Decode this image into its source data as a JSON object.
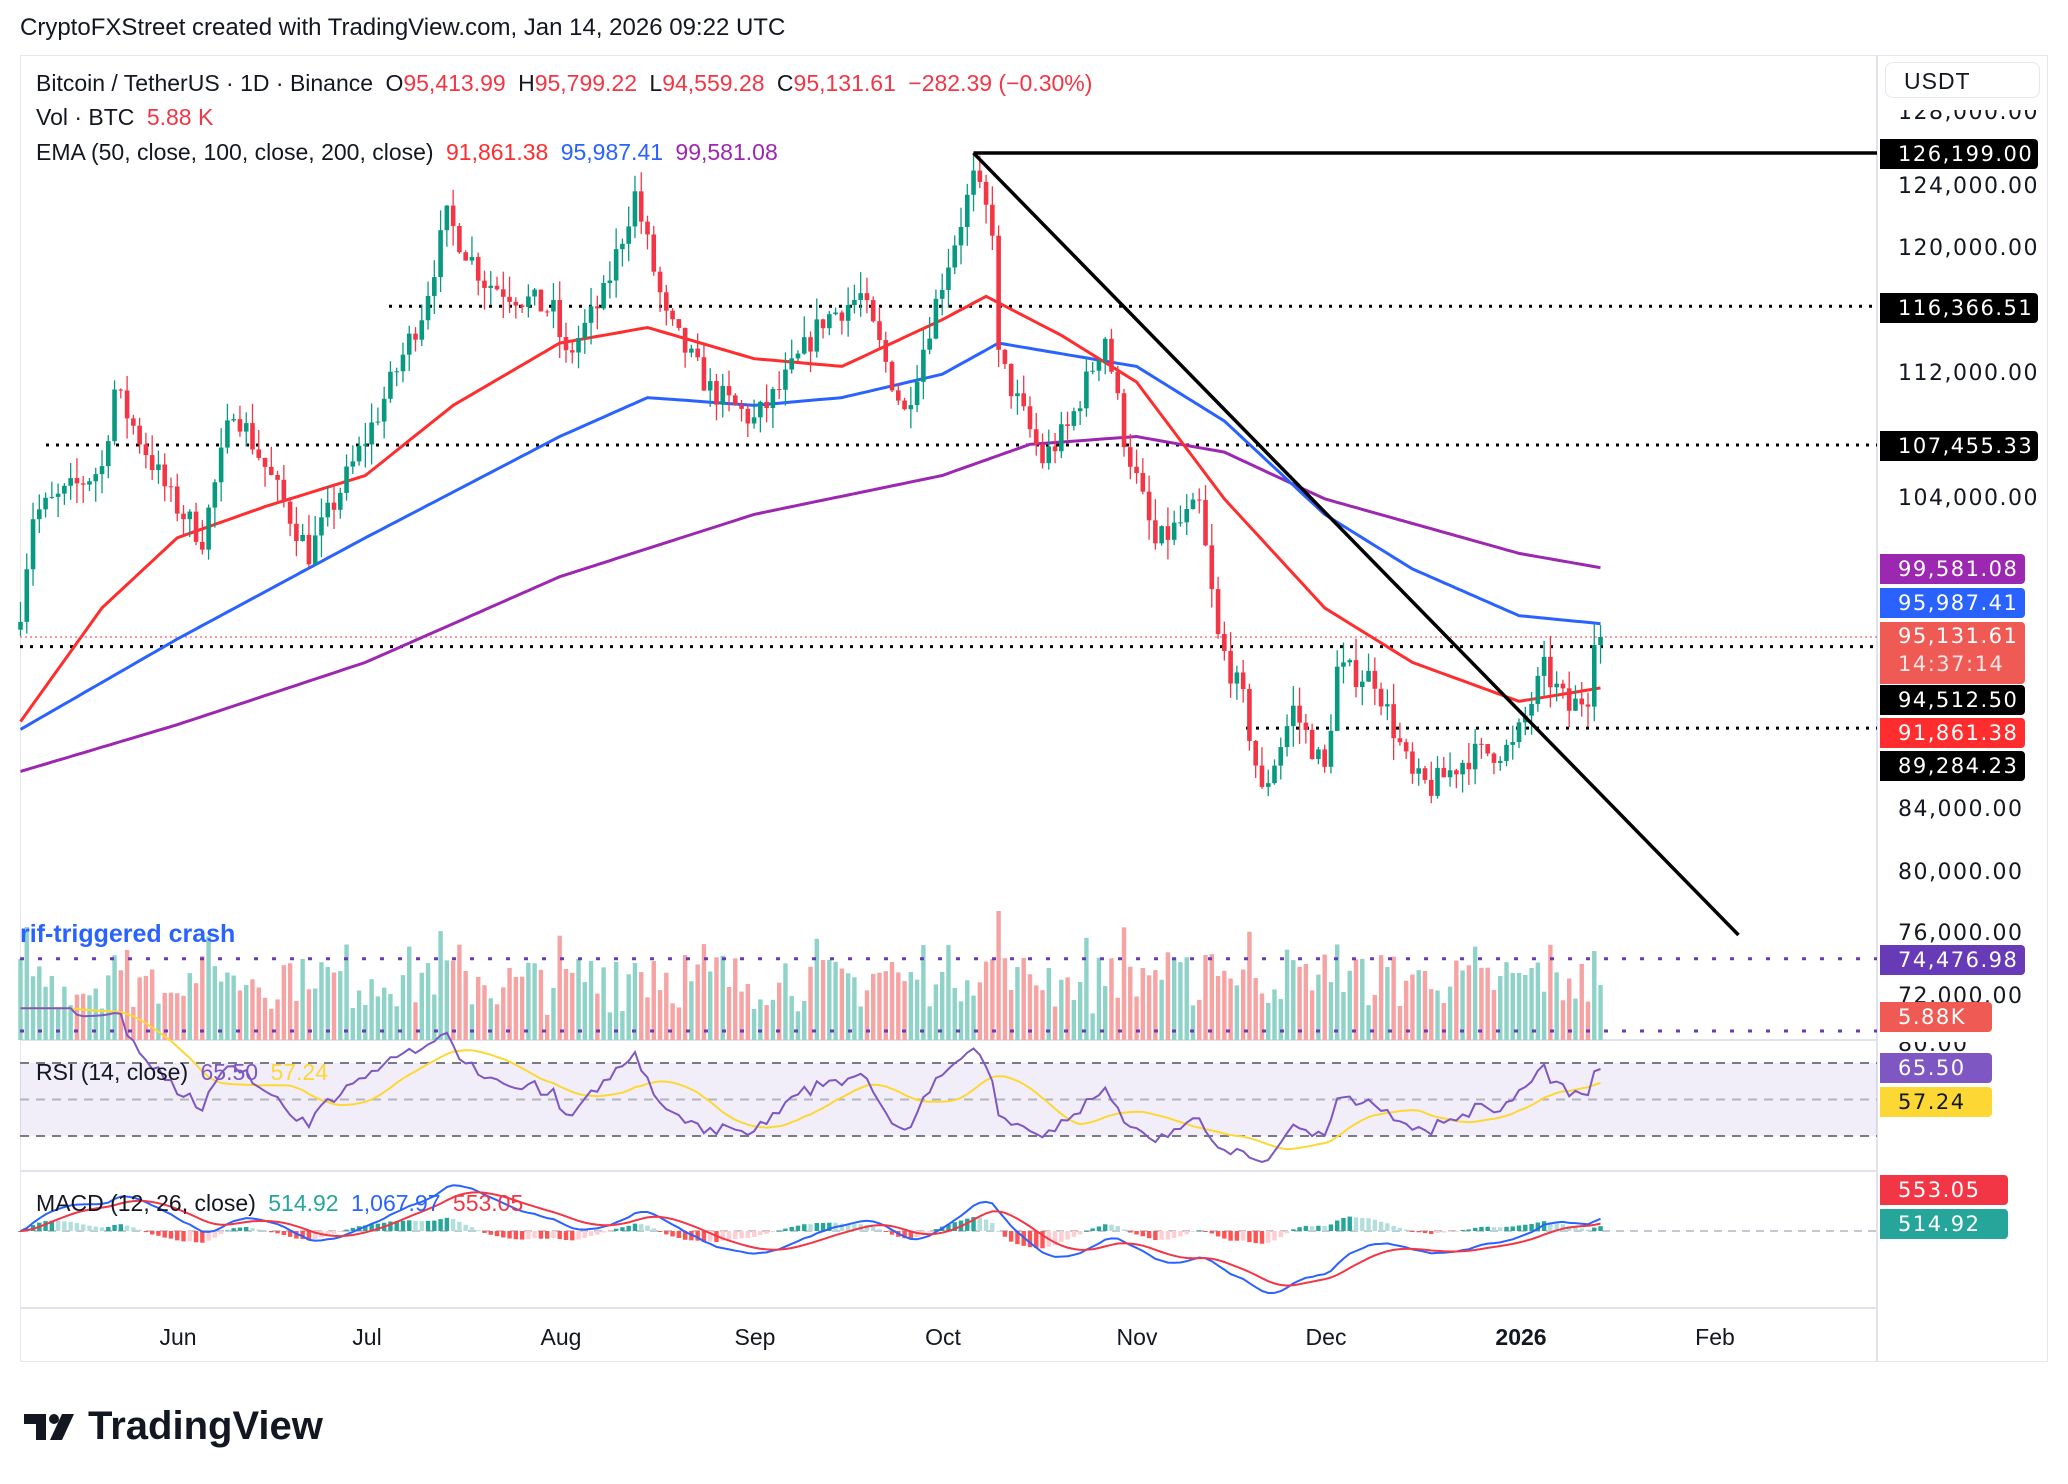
{
  "header": {
    "caption": "CryptoFXStreet created with TradingView.com, Jan 14, 2026 09:22 UTC"
  },
  "legend": {
    "symbol": "Bitcoin / TetherUS · 1D · Binance",
    "o_label": "O",
    "open": "95,413.99",
    "h_label": "H",
    "high": "95,799.22",
    "l_label": "L",
    "low": "94,559.28",
    "c_label": "C",
    "close": "95,131.61",
    "change": "−282.39 (−0.30%)",
    "vol_label": "Vol · BTC",
    "vol_value": "5.88 K",
    "ema_label": "EMA (50, close, 100, close, 200, close)",
    "ema50": "91,861.38",
    "ema100": "95,987.41",
    "ema200": "99,581.08",
    "rsi_label": "RSI (14, close)",
    "rsi_value": "65.50",
    "rsi_ma": "57.24",
    "macd_label": "MACD (12, 26, close)",
    "macd_hist": "514.92",
    "macd_line": "1,067.97",
    "macd_signal": "553.05"
  },
  "annotation": "rif-triggered crash",
  "price_axis": {
    "currency": "USDT",
    "labels": [
      "128,000.00",
      "124,000.00",
      "120,000.00",
      "112,000.00",
      "104,000.00",
      "84,000.00",
      "80,000.00",
      "76,000.00",
      "72,000.00"
    ],
    "rsi_label": "80.00",
    "tags": {
      "high": "126,199.00",
      "res1": "116,366.51",
      "res2": "107,455.33",
      "ema200": "99,581.08",
      "ema100": "95,987.41",
      "price": "95,131.61",
      "countdown": "14:37:14",
      "sup1": "94,512.50",
      "ema50": "91,861.38",
      "sup2": "89,284.23",
      "vol_level": "74,476.98",
      "volume": "5.88K",
      "rsi": "65.50",
      "rsi_ma": "57.24",
      "macd_signal": "553.05",
      "macd_hist": "514.92"
    }
  },
  "time_axis": [
    "Jun",
    "Jul",
    "Aug",
    "Sep",
    "Oct",
    "Nov",
    "Dec",
    "2026",
    "Feb"
  ],
  "brand": "TradingView",
  "colors": {
    "up": "#089981",
    "down": "#f23645",
    "ema50": "#ff2d2d",
    "ema100": "#2962ff",
    "ema200": "#9c27b0",
    "rsi": "#7e57c2",
    "rsi_ma": "#fdd835",
    "annotation": "#2962ff"
  },
  "chart_data": {
    "type": "candlestick",
    "symbol": "BTCUSDT",
    "interval": "1D",
    "ylim": [
      70000,
      128000
    ],
    "close_anchors": [
      [
        "2025-05-07",
        97000
      ],
      [
        "2025-05-09",
        103000
      ],
      [
        "2025-05-13",
        104000
      ],
      [
        "2025-05-20",
        106000
      ],
      [
        "2025-05-22",
        111000
      ],
      [
        "2025-05-31",
        104000
      ],
      [
        "2025-06-05",
        101500
      ],
      [
        "2025-06-10",
        110000
      ],
      [
        "2025-06-17",
        104500
      ],
      [
        "2025-06-22",
        100500
      ],
      [
        "2025-06-30",
        107000
      ],
      [
        "2025-07-03",
        109500
      ],
      [
        "2025-07-10",
        116000
      ],
      [
        "2025-07-14",
        122000
      ],
      [
        "2025-07-20",
        118000
      ],
      [
        "2025-07-31",
        116000
      ],
      [
        "2025-08-02",
        113000
      ],
      [
        "2025-08-08",
        117000
      ],
      [
        "2025-08-13",
        123500
      ],
      [
        "2025-08-18",
        115500
      ],
      [
        "2025-08-25",
        111000
      ],
      [
        "2025-09-01",
        109000
      ],
      [
        "2025-09-05",
        111000
      ],
      [
        "2025-09-12",
        115500
      ],
      [
        "2025-09-18",
        117000
      ],
      [
        "2025-09-25",
        109500
      ],
      [
        "2025-10-01",
        118000
      ],
      [
        "2025-10-06",
        124500
      ],
      [
        "2025-10-09",
        121500
      ],
      [
        "2025-10-10",
        113000
      ],
      [
        "2025-10-17",
        106500
      ],
      [
        "2025-10-21",
        108500
      ],
      [
        "2025-10-27",
        114500
      ],
      [
        "2025-10-30",
        108000
      ],
      [
        "2025-11-04",
        101000
      ],
      [
        "2025-11-11",
        103500
      ],
      [
        "2025-11-14",
        95000
      ],
      [
        "2025-11-18",
        91000
      ],
      [
        "2025-11-21",
        85000
      ],
      [
        "2025-11-26",
        90500
      ],
      [
        "2025-12-01",
        86500
      ],
      [
        "2025-12-03",
        93000
      ],
      [
        "2025-12-09",
        92500
      ],
      [
        "2025-12-15",
        86000
      ],
      [
        "2025-12-18",
        85500
      ],
      [
        "2025-12-24",
        87500
      ],
      [
        "2025-12-31",
        88000
      ],
      [
        "2026-01-05",
        93000
      ],
      [
        "2026-01-09",
        90500
      ],
      [
        "2026-01-12",
        91500
      ],
      [
        "2026-01-13",
        95500
      ],
      [
        "2026-01-14",
        95131.61
      ]
    ],
    "ema50": [
      [
        "2025-05-07",
        89700
      ],
      [
        "2025-05-20",
        97000
      ],
      [
        "2025-06-01",
        101500
      ],
      [
        "2025-06-15",
        103500
      ],
      [
        "2025-07-01",
        105500
      ],
      [
        "2025-07-15",
        110000
      ],
      [
        "2025-08-01",
        114000
      ],
      [
        "2025-08-15",
        115000
      ],
      [
        "2025-09-01",
        113000
      ],
      [
        "2025-09-15",
        112500
      ],
      [
        "2025-10-01",
        115500
      ],
      [
        "2025-10-08",
        117000
      ],
      [
        "2025-10-20",
        114500
      ],
      [
        "2025-11-01",
        111500
      ],
      [
        "2025-11-15",
        104000
      ],
      [
        "2025-12-01",
        97000
      ],
      [
        "2025-12-15",
        93500
      ],
      [
        "2026-01-01",
        91000
      ],
      [
        "2026-01-14",
        91861.38
      ]
    ],
    "ema100": [
      [
        "2025-05-07",
        89200
      ],
      [
        "2025-06-01",
        95000
      ],
      [
        "2025-07-01",
        101500
      ],
      [
        "2025-08-01",
        108000
      ],
      [
        "2025-08-15",
        110500
      ],
      [
        "2025-09-01",
        110000
      ],
      [
        "2025-09-15",
        110500
      ],
      [
        "2025-10-01",
        112000
      ],
      [
        "2025-10-10",
        114000
      ],
      [
        "2025-11-01",
        112500
      ],
      [
        "2025-11-15",
        109000
      ],
      [
        "2025-12-01",
        103000
      ],
      [
        "2025-12-15",
        99500
      ],
      [
        "2026-01-01",
        96500
      ],
      [
        "2026-01-14",
        95987.41
      ]
    ],
    "ema200": [
      [
        "2025-05-07",
        86500
      ],
      [
        "2025-06-01",
        89500
      ],
      [
        "2025-07-01",
        93500
      ],
      [
        "2025-08-01",
        99000
      ],
      [
        "2025-09-01",
        103000
      ],
      [
        "2025-10-01",
        105500
      ],
      [
        "2025-10-15",
        107500
      ],
      [
        "2025-11-01",
        108000
      ],
      [
        "2025-11-15",
        107000
      ],
      [
        "2025-12-01",
        104000
      ],
      [
        "2026-01-01",
        100500
      ],
      [
        "2026-01-14",
        99581.08
      ]
    ],
    "levels": {
      "high": 126199.0,
      "res1": 116366.51,
      "res2": 107455.33,
      "sup1": 94512.5,
      "sup2": 89284.23,
      "volume_level": 74476.98
    },
    "trendline": [
      [
        "2025-10-06",
        126199.0
      ],
      [
        "2026-02-05",
        76000
      ]
    ],
    "rsi_levels": [
      70,
      50,
      30
    ],
    "last": {
      "close": 95131.61,
      "volume_k": 5.88,
      "rsi": 65.5,
      "rsi_ma": 57.24,
      "macd": 1067.97,
      "signal": 553.05,
      "hist": 514.92
    }
  }
}
